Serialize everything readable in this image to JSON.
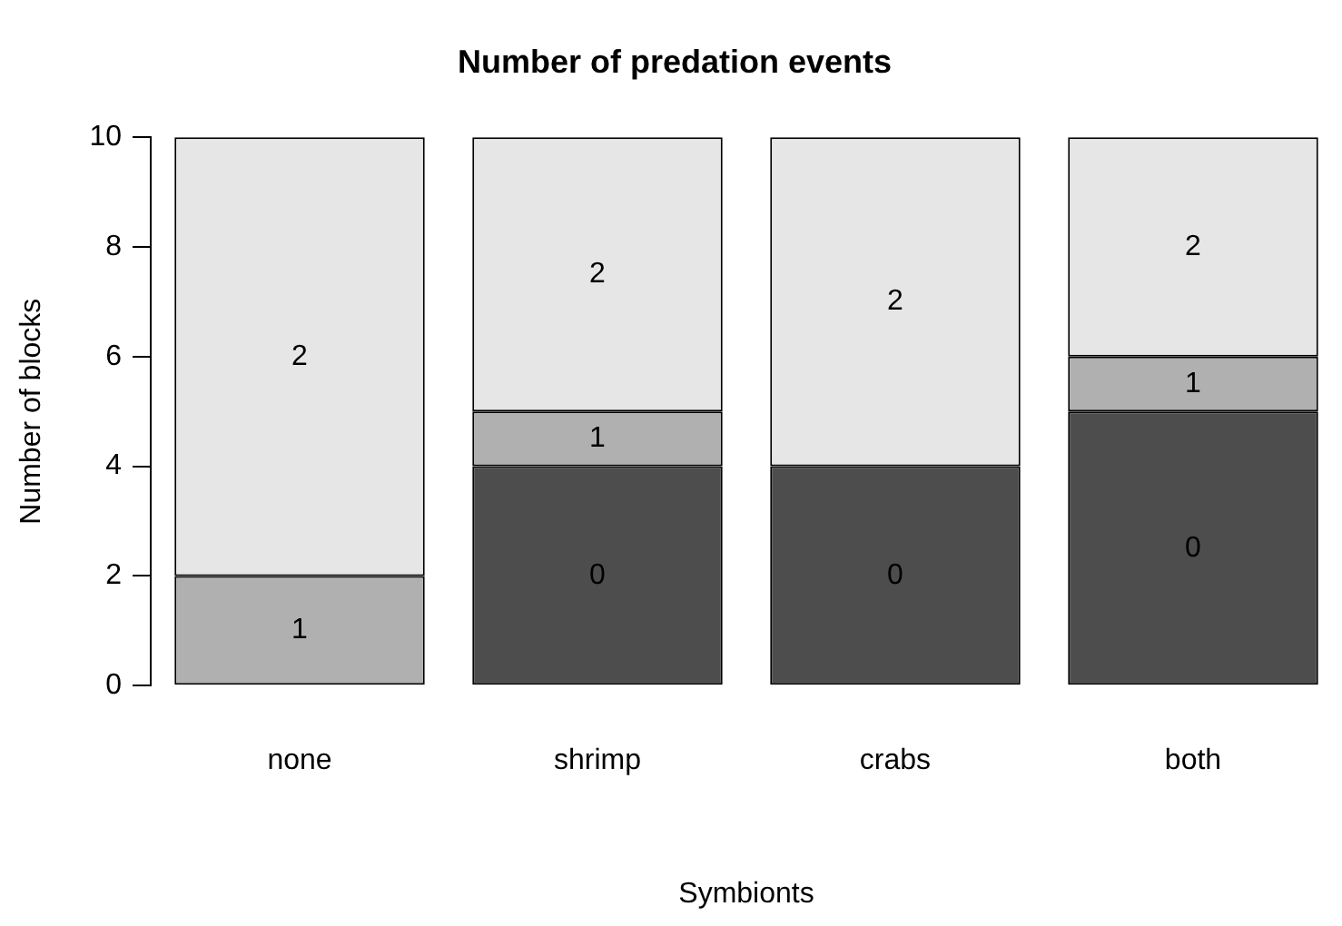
{
  "chart_data": {
    "type": "bar",
    "title": "Number of predation events",
    "xlabel": "Symbionts",
    "ylabel": "Number of blocks",
    "categories": [
      "none",
      "shrimp",
      "crabs",
      "both"
    ],
    "series": [
      {
        "name": "0",
        "color": "#4d4d4d",
        "values": [
          0,
          4,
          4,
          5
        ]
      },
      {
        "name": "1",
        "color": "#b0b0b0",
        "values": [
          2,
          1,
          0,
          1
        ]
      },
      {
        "name": "2",
        "color": "#e6e6e6",
        "values": [
          8,
          5,
          6,
          4
        ]
      }
    ],
    "stacked": true,
    "ylim": [
      0,
      10
    ],
    "yticks": [
      0,
      2,
      4,
      6,
      8,
      10
    ],
    "grid": false,
    "legend": false
  }
}
